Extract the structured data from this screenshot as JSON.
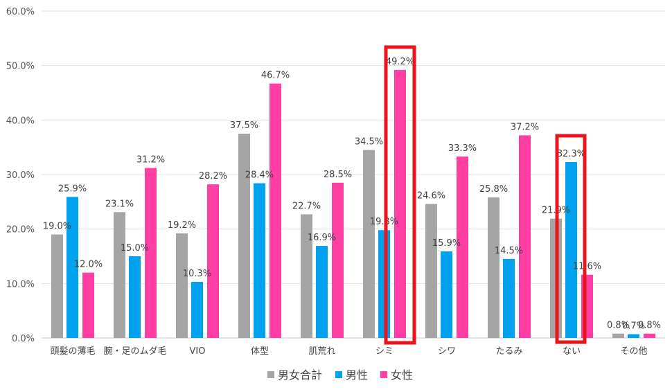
{
  "chart_data": {
    "type": "bar",
    "categories": [
      "頭髪の薄毛",
      "腕・足のムダ毛",
      "VIO",
      "体型",
      "肌荒れ",
      "シミ",
      "シワ",
      "たるみ",
      "ない",
      "その他"
    ],
    "series": [
      {
        "name": "男女合計",
        "color": "#a5a5a5",
        "values": [
          19.0,
          23.1,
          19.2,
          37.5,
          22.7,
          34.5,
          24.6,
          25.8,
          21.9,
          0.8
        ],
        "labels": [
          "19.0%",
          "23.1%",
          "19.2%",
          "37.5%",
          "22.7%",
          "34.5%",
          "24.6%",
          "25.8%",
          "21.9%",
          "0.8%"
        ]
      },
      {
        "name": "男性",
        "color": "#00a2ed",
        "values": [
          25.9,
          15.0,
          10.3,
          28.4,
          16.9,
          19.8,
          15.9,
          14.5,
          32.3,
          0.7
        ],
        "labels": [
          "25.9%",
          "15.0%",
          "10.3%",
          "28.4%",
          "16.9%",
          "19.8%",
          "15.9%",
          "14.5%",
          "32.3%",
          "0.7%"
        ]
      },
      {
        "name": "女性",
        "color": "#ff3fa4",
        "values": [
          12.0,
          31.2,
          28.2,
          46.7,
          28.5,
          49.2,
          33.3,
          37.2,
          11.6,
          0.8
        ],
        "labels": [
          "12.0%",
          "31.2%",
          "28.2%",
          "46.7%",
          "28.5%",
          "49.2%",
          "33.3%",
          "37.2%",
          "11.6%",
          "0.8%"
        ]
      }
    ],
    "y_ticks": [
      0,
      10,
      20,
      30,
      40,
      50,
      60
    ],
    "y_tick_labels": [
      "0.0%",
      "10.0%",
      "20.0%",
      "30.0%",
      "40.0%",
      "50.0%",
      "60.0%"
    ],
    "ylim": [
      0,
      60
    ],
    "grid": true,
    "legend_position": "bottom",
    "highlighted_categories": [
      "シミ",
      "ない"
    ],
    "highlight_color": "#e8151b"
  }
}
